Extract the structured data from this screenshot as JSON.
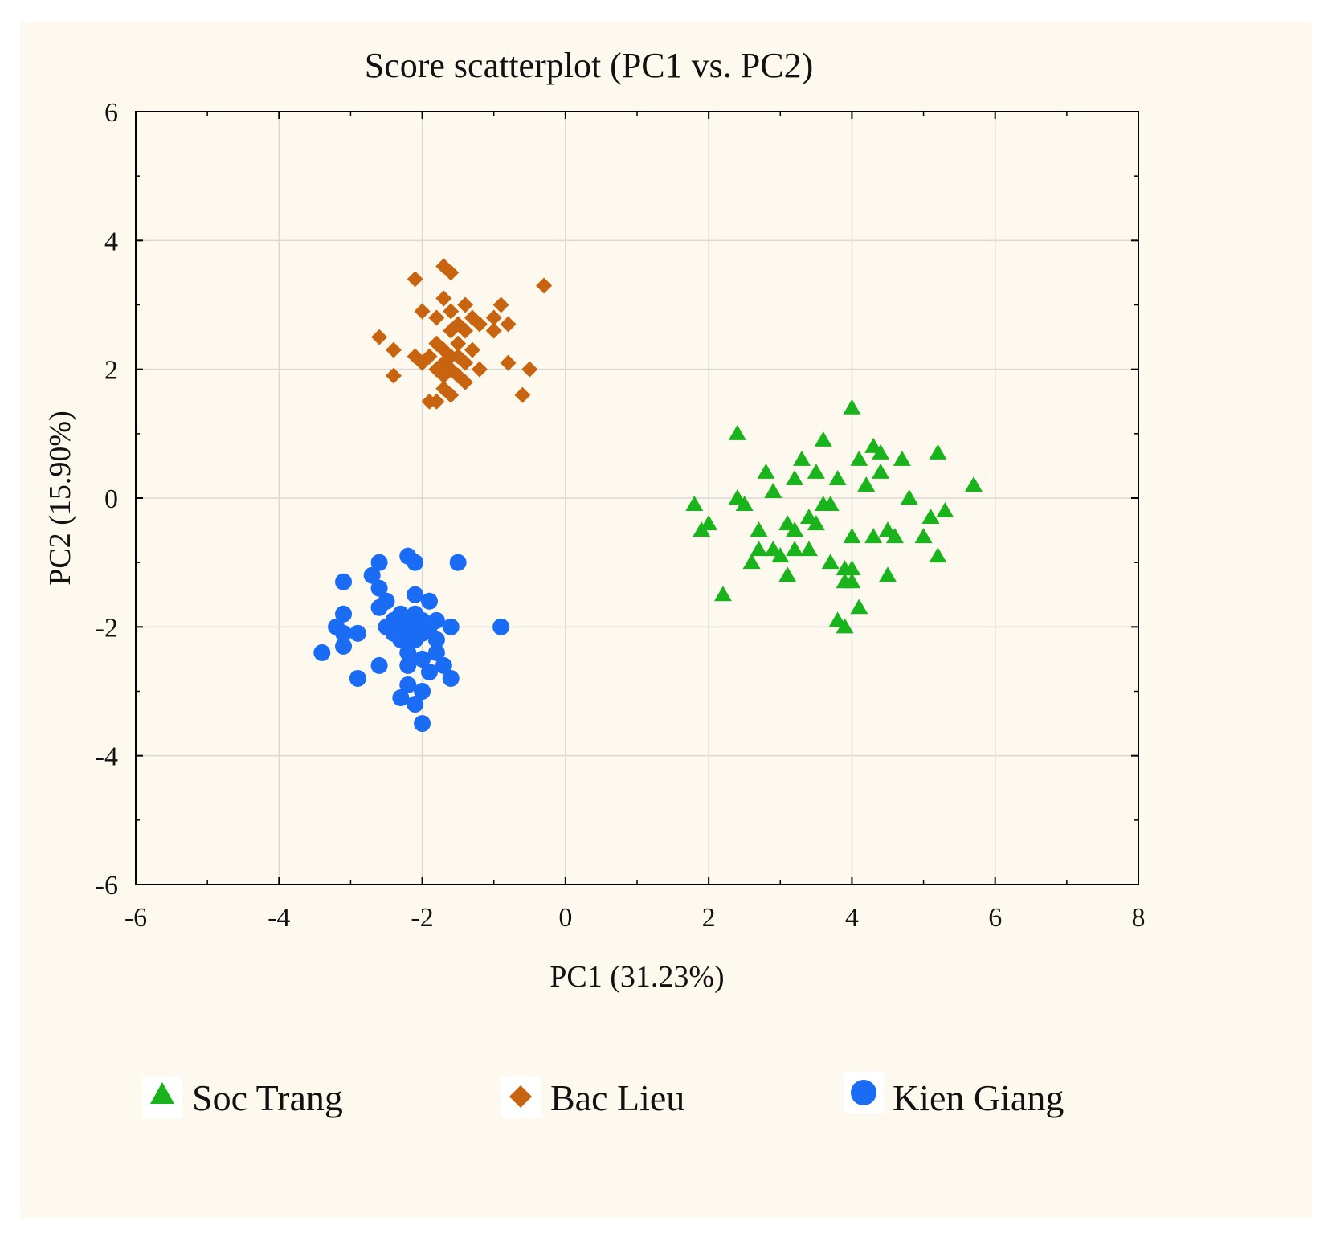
{
  "chart_data": {
    "type": "scatter",
    "title": "Score scatterplot (PC1 vs. PC2)",
    "xlabel": "PC1 (31.23%)",
    "ylabel": "PC2 (15.90%)",
    "xlim": [
      -6,
      8
    ],
    "ylim": [
      -6,
      6
    ],
    "xticks": [
      -6,
      -4,
      -2,
      0,
      2,
      4,
      6,
      8
    ],
    "yticks": [
      -6,
      -4,
      -2,
      0,
      2,
      4,
      6
    ],
    "xtick_labels": [
      "-6",
      "-4",
      "-2",
      "0",
      "2",
      "4",
      "6",
      "8"
    ],
    "ytick_labels": [
      "-6",
      "-4",
      "-2",
      "0",
      "2",
      "4",
      "6"
    ],
    "grid": true,
    "legend_position": "bottom",
    "series": [
      {
        "name": "Soc Trang",
        "marker": "triangle",
        "color": "#19b31c",
        "points": [
          [
            2.4,
            1.0
          ],
          [
            4.0,
            1.4
          ],
          [
            3.6,
            0.9
          ],
          [
            4.3,
            0.8
          ],
          [
            4.4,
            0.7
          ],
          [
            5.2,
            0.7
          ],
          [
            4.7,
            0.6
          ],
          [
            3.3,
            0.6
          ],
          [
            4.1,
            0.6
          ],
          [
            5.7,
            0.2
          ],
          [
            2.8,
            0.4
          ],
          [
            3.5,
            0.4
          ],
          [
            3.8,
            0.3
          ],
          [
            3.2,
            0.3
          ],
          [
            4.4,
            0.4
          ],
          [
            4.2,
            0.2
          ],
          [
            2.9,
            0.1
          ],
          [
            4.8,
            0.0
          ],
          [
            1.8,
            -0.1
          ],
          [
            2.4,
            0.0
          ],
          [
            2.5,
            -0.1
          ],
          [
            3.6,
            -0.1
          ],
          [
            3.7,
            -0.1
          ],
          [
            5.3,
            -0.2
          ],
          [
            5.1,
            -0.3
          ],
          [
            2.0,
            -0.4
          ],
          [
            3.1,
            -0.4
          ],
          [
            3.4,
            -0.3
          ],
          [
            3.5,
            -0.4
          ],
          [
            1.9,
            -0.5
          ],
          [
            2.7,
            -0.5
          ],
          [
            3.2,
            -0.5
          ],
          [
            4.5,
            -0.5
          ],
          [
            4.6,
            -0.6
          ],
          [
            5.0,
            -0.6
          ],
          [
            4.3,
            -0.6
          ],
          [
            4.0,
            -0.6
          ],
          [
            2.9,
            -0.8
          ],
          [
            3.0,
            -0.9
          ],
          [
            3.2,
            -0.8
          ],
          [
            3.4,
            -0.8
          ],
          [
            2.7,
            -0.8
          ],
          [
            5.2,
            -0.9
          ],
          [
            2.6,
            -1.0
          ],
          [
            3.7,
            -1.0
          ],
          [
            3.9,
            -1.1
          ],
          [
            4.0,
            -1.1
          ],
          [
            3.1,
            -1.2
          ],
          [
            4.5,
            -1.2
          ],
          [
            3.9,
            -1.3
          ],
          [
            4.0,
            -1.3
          ],
          [
            2.2,
            -1.5
          ],
          [
            4.1,
            -1.7
          ],
          [
            3.8,
            -1.9
          ],
          [
            3.9,
            -2.0
          ]
        ]
      },
      {
        "name": "Bac Lieu",
        "marker": "diamond",
        "color": "#c86410",
        "points": [
          [
            -1.7,
            3.6
          ],
          [
            -1.6,
            3.5
          ],
          [
            -2.1,
            3.4
          ],
          [
            -0.3,
            3.3
          ],
          [
            -1.7,
            3.1
          ],
          [
            -1.4,
            3.0
          ],
          [
            -0.9,
            3.0
          ],
          [
            -2.0,
            2.9
          ],
          [
            -1.6,
            2.9
          ],
          [
            -1.8,
            2.8
          ],
          [
            -1.3,
            2.8
          ],
          [
            -1.0,
            2.8
          ],
          [
            -1.5,
            2.7
          ],
          [
            -1.2,
            2.7
          ],
          [
            -0.8,
            2.7
          ],
          [
            -1.6,
            2.6
          ],
          [
            -1.4,
            2.6
          ],
          [
            -1.0,
            2.6
          ],
          [
            -2.6,
            2.5
          ],
          [
            -1.8,
            2.4
          ],
          [
            -1.5,
            2.4
          ],
          [
            -2.4,
            2.3
          ],
          [
            -1.7,
            2.3
          ],
          [
            -1.3,
            2.3
          ],
          [
            -2.1,
            2.2
          ],
          [
            -1.9,
            2.2
          ],
          [
            -1.6,
            2.2
          ],
          [
            -1.5,
            2.2
          ],
          [
            -2.0,
            2.1
          ],
          [
            -1.7,
            2.1
          ],
          [
            -1.4,
            2.1
          ],
          [
            -0.8,
            2.1
          ],
          [
            -1.8,
            2.0
          ],
          [
            -1.6,
            2.0
          ],
          [
            -1.2,
            2.0
          ],
          [
            -0.5,
            2.0
          ],
          [
            -2.4,
            1.9
          ],
          [
            -1.7,
            1.9
          ],
          [
            -1.5,
            1.9
          ],
          [
            -1.4,
            1.8
          ],
          [
            -1.7,
            1.7
          ],
          [
            -1.6,
            1.6
          ],
          [
            -0.6,
            1.6
          ],
          [
            -1.8,
            1.5
          ],
          [
            -1.9,
            1.5
          ]
        ]
      },
      {
        "name": "Kien Giang",
        "marker": "circle",
        "color": "#1a6cf5",
        "points": [
          [
            -2.2,
            -0.9
          ],
          [
            -2.1,
            -1.0
          ],
          [
            -2.6,
            -1.0
          ],
          [
            -1.5,
            -1.0
          ],
          [
            -2.7,
            -1.2
          ],
          [
            -2.6,
            -1.4
          ],
          [
            -3.1,
            -1.3
          ],
          [
            -2.1,
            -1.5
          ],
          [
            -2.5,
            -1.6
          ],
          [
            -1.9,
            -1.6
          ],
          [
            -2.6,
            -1.7
          ],
          [
            -2.3,
            -1.8
          ],
          [
            -2.1,
            -1.8
          ],
          [
            -3.1,
            -1.8
          ],
          [
            -2.4,
            -1.9
          ],
          [
            -2.2,
            -1.9
          ],
          [
            -2.0,
            -1.9
          ],
          [
            -1.8,
            -1.9
          ],
          [
            -1.6,
            -2.0
          ],
          [
            -2.5,
            -2.0
          ],
          [
            -2.3,
            -2.0
          ],
          [
            -2.1,
            -2.0
          ],
          [
            -1.9,
            -2.0
          ],
          [
            -0.9,
            -2.0
          ],
          [
            -3.2,
            -2.0
          ],
          [
            -2.4,
            -2.1
          ],
          [
            -2.2,
            -2.1
          ],
          [
            -2.0,
            -2.1
          ],
          [
            -2.9,
            -2.1
          ],
          [
            -3.1,
            -2.1
          ],
          [
            -1.8,
            -2.2
          ],
          [
            -2.3,
            -2.2
          ],
          [
            -2.1,
            -2.2
          ],
          [
            -3.1,
            -2.3
          ],
          [
            -2.2,
            -2.4
          ],
          [
            -3.4,
            -2.4
          ],
          [
            -1.8,
            -2.4
          ],
          [
            -2.0,
            -2.5
          ],
          [
            -2.6,
            -2.6
          ],
          [
            -2.2,
            -2.6
          ],
          [
            -1.7,
            -2.6
          ],
          [
            -1.9,
            -2.7
          ],
          [
            -1.6,
            -2.8
          ],
          [
            -2.9,
            -2.8
          ],
          [
            -2.2,
            -2.9
          ],
          [
            -2.0,
            -3.0
          ],
          [
            -2.3,
            -3.1
          ],
          [
            -2.1,
            -3.2
          ],
          [
            -2.0,
            -3.5
          ]
        ]
      }
    ]
  }
}
